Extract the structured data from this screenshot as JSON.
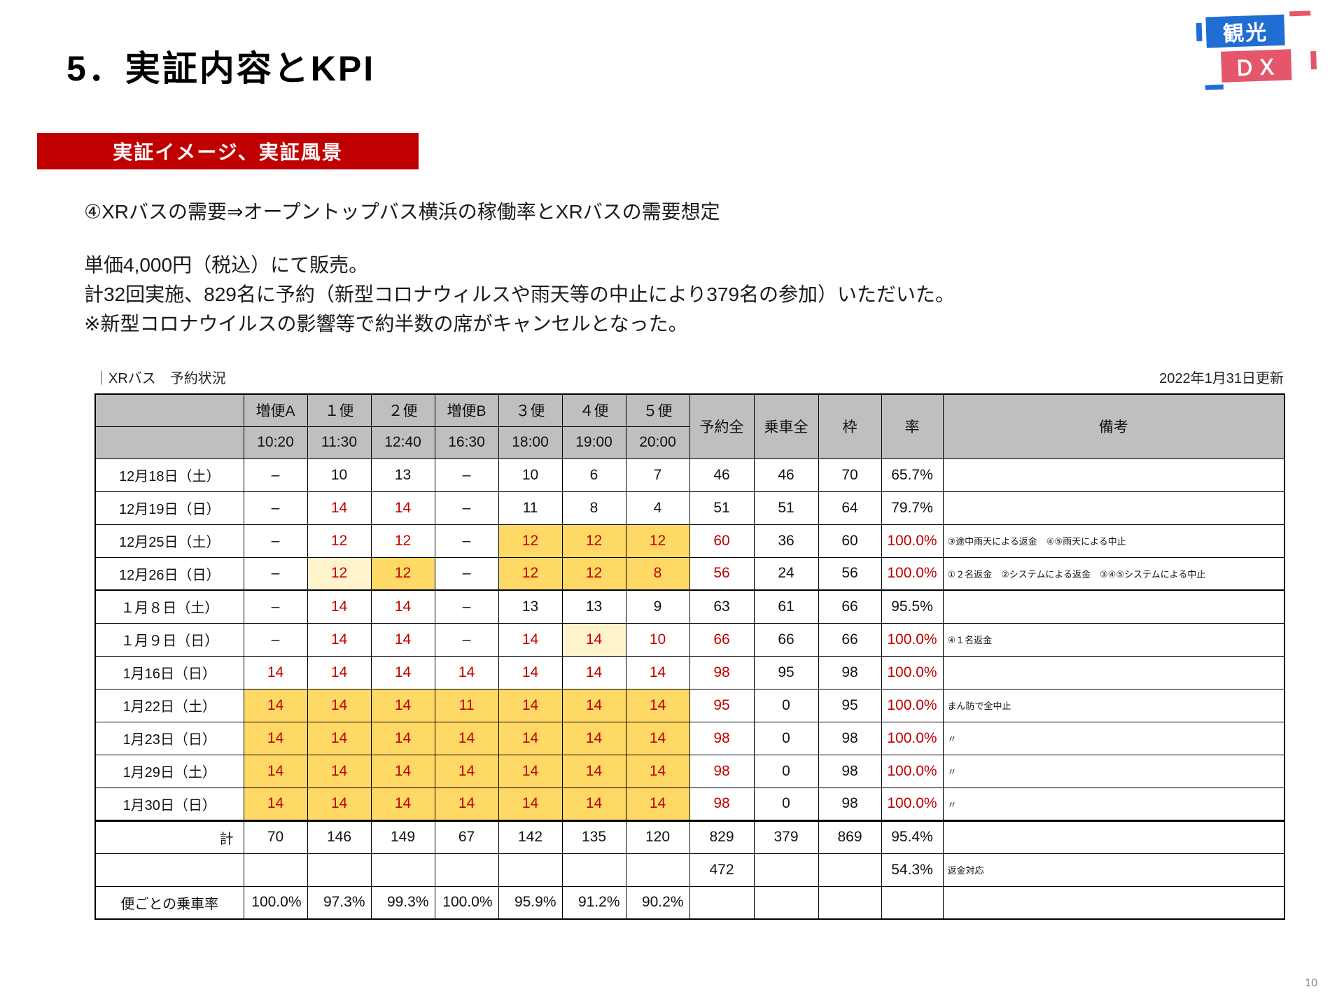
{
  "slide": {
    "title": "5．実証内容とKPI",
    "page_number": "10"
  },
  "logo": {
    "top": "観光",
    "bottom": "ＤＸ"
  },
  "badge": {
    "label": "実証イメージ、実証風景"
  },
  "body": {
    "lines": [
      "④XRバスの需要⇒オープントップバス横浜の稼働率とXRバスの需要想定",
      "単価4,000円（税込）にて販売。",
      "計32回実施、829名に予約（新型コロナウィルスや雨天等の中止により379名の参加）いただいた。",
      "※新型コロナウイルスの影響等で約半数の席がキャンセルとなった。"
    ]
  },
  "colors": {
    "accent_red": "#c00000",
    "highlight_yellow": "#ffd966",
    "highlight_light_yellow": "#fff3cc",
    "header_gray": "#bfbfbf",
    "logo_blue": "#1f6ed4",
    "logo_pink": "#e4566a"
  },
  "table": {
    "caption": "｜XRバス　予約状況",
    "updated": "2022年1月31日更新",
    "bus_headers": [
      {
        "name": "増便A",
        "time": "10:20"
      },
      {
        "name": "１便",
        "time": "11:30"
      },
      {
        "name": "２便",
        "time": "12:40"
      },
      {
        "name": "増便B",
        "time": "16:30"
      },
      {
        "name": "３便",
        "time": "18:00"
      },
      {
        "name": "４便",
        "time": "19:00"
      },
      {
        "name": "５便",
        "time": "20:00"
      }
    ],
    "summary_headers": [
      "予約全",
      "乗車全",
      "枠",
      "率",
      "備考"
    ],
    "rows": [
      {
        "label": "12月18日（土）",
        "cells": [
          {
            "t": "–"
          },
          {
            "t": "10"
          },
          {
            "t": "13"
          },
          {
            "t": "–"
          },
          {
            "t": "10"
          },
          {
            "t": "6"
          },
          {
            "t": "7"
          },
          {
            "t": "46"
          },
          {
            "t": "46"
          },
          {
            "t": "70"
          },
          {
            "t": "65.7%"
          },
          {
            "t": ""
          }
        ]
      },
      {
        "label": "12月19日（日）",
        "cells": [
          {
            "t": "–"
          },
          {
            "t": "14",
            "red": true
          },
          {
            "t": "14",
            "red": true
          },
          {
            "t": "–"
          },
          {
            "t": "11"
          },
          {
            "t": "8"
          },
          {
            "t": "4"
          },
          {
            "t": "51"
          },
          {
            "t": "51"
          },
          {
            "t": "64"
          },
          {
            "t": "79.7%"
          },
          {
            "t": ""
          }
        ]
      },
      {
        "label": "12月25日（土）",
        "cells": [
          {
            "t": "–"
          },
          {
            "t": "12",
            "red": true
          },
          {
            "t": "12",
            "red": true
          },
          {
            "t": "–"
          },
          {
            "t": "12",
            "red": true,
            "bg": "y"
          },
          {
            "t": "12",
            "red": true,
            "bg": "y"
          },
          {
            "t": "12",
            "red": true,
            "bg": "y"
          },
          {
            "t": "60",
            "red": true
          },
          {
            "t": "36"
          },
          {
            "t": "60"
          },
          {
            "t": "100.0%",
            "red": true
          },
          {
            "t": "③途中雨天による返金　④⑤雨天による中止"
          }
        ]
      },
      {
        "label": "12月26日（日）",
        "cells": [
          {
            "t": "–"
          },
          {
            "t": "12",
            "red": true,
            "bg": "ly"
          },
          {
            "t": "12",
            "red": true,
            "bg": "y"
          },
          {
            "t": "–"
          },
          {
            "t": "12",
            "red": true,
            "bg": "y"
          },
          {
            "t": "12",
            "red": true,
            "bg": "y"
          },
          {
            "t": "8",
            "red": true,
            "bg": "y"
          },
          {
            "t": "56",
            "red": true
          },
          {
            "t": "24"
          },
          {
            "t": "56"
          },
          {
            "t": "100.0%",
            "red": true
          },
          {
            "t": "①２名返金　②システムによる返金　③④⑤システムによる中止"
          }
        ]
      },
      {
        "label": "１月８日（土）",
        "sep": true,
        "cells": [
          {
            "t": "–"
          },
          {
            "t": "14",
            "red": true
          },
          {
            "t": "14",
            "red": true
          },
          {
            "t": "–"
          },
          {
            "t": "13"
          },
          {
            "t": "13"
          },
          {
            "t": "9"
          },
          {
            "t": "63"
          },
          {
            "t": "61"
          },
          {
            "t": "66"
          },
          {
            "t": "95.5%"
          },
          {
            "t": ""
          }
        ]
      },
      {
        "label": "１月９日（日）",
        "cells": [
          {
            "t": "–"
          },
          {
            "t": "14",
            "red": true
          },
          {
            "t": "14",
            "red": true
          },
          {
            "t": "–"
          },
          {
            "t": "14",
            "red": true
          },
          {
            "t": "14",
            "red": true,
            "bg": "ly"
          },
          {
            "t": "10",
            "red": true
          },
          {
            "t": "66",
            "red": true
          },
          {
            "t": "66"
          },
          {
            "t": "66"
          },
          {
            "t": "100.0%",
            "red": true
          },
          {
            "t": "④１名返金"
          }
        ]
      },
      {
        "label": "1月16日（日）",
        "cells": [
          {
            "t": "14",
            "red": true
          },
          {
            "t": "14",
            "red": true
          },
          {
            "t": "14",
            "red": true
          },
          {
            "t": "14",
            "red": true
          },
          {
            "t": "14",
            "red": true
          },
          {
            "t": "14",
            "red": true
          },
          {
            "t": "14",
            "red": true
          },
          {
            "t": "98",
            "red": true
          },
          {
            "t": "95"
          },
          {
            "t": "98"
          },
          {
            "t": "100.0%",
            "red": true
          },
          {
            "t": ""
          }
        ]
      },
      {
        "label": "1月22日（土）",
        "cells": [
          {
            "t": "14",
            "red": true,
            "bg": "y"
          },
          {
            "t": "14",
            "red": true,
            "bg": "y"
          },
          {
            "t": "14",
            "red": true,
            "bg": "y"
          },
          {
            "t": "11",
            "red": true,
            "bg": "y"
          },
          {
            "t": "14",
            "red": true,
            "bg": "y"
          },
          {
            "t": "14",
            "red": true,
            "bg": "y"
          },
          {
            "t": "14",
            "red": true,
            "bg": "y"
          },
          {
            "t": "95",
            "red": true
          },
          {
            "t": "0"
          },
          {
            "t": "95"
          },
          {
            "t": "100.0%",
            "red": true
          },
          {
            "t": "まん防で全中止"
          }
        ]
      },
      {
        "label": "1月23日（日）",
        "cells": [
          {
            "t": "14",
            "red": true,
            "bg": "y"
          },
          {
            "t": "14",
            "red": true,
            "bg": "y"
          },
          {
            "t": "14",
            "red": true,
            "bg": "y"
          },
          {
            "t": "14",
            "red": true,
            "bg": "y"
          },
          {
            "t": "14",
            "red": true,
            "bg": "y"
          },
          {
            "t": "14",
            "red": true,
            "bg": "y"
          },
          {
            "t": "14",
            "red": true,
            "bg": "y"
          },
          {
            "t": "98",
            "red": true
          },
          {
            "t": "0"
          },
          {
            "t": "98"
          },
          {
            "t": "100.0%",
            "red": true
          },
          {
            "t": "〃"
          }
        ]
      },
      {
        "label": "1月29日（土）",
        "cells": [
          {
            "t": "14",
            "red": true,
            "bg": "y"
          },
          {
            "t": "14",
            "red": true,
            "bg": "y"
          },
          {
            "t": "14",
            "red": true,
            "bg": "y"
          },
          {
            "t": "14",
            "red": true,
            "bg": "y"
          },
          {
            "t": "14",
            "red": true,
            "bg": "y"
          },
          {
            "t": "14",
            "red": true,
            "bg": "y"
          },
          {
            "t": "14",
            "red": true,
            "bg": "y"
          },
          {
            "t": "98",
            "red": true
          },
          {
            "t": "0"
          },
          {
            "t": "98"
          },
          {
            "t": "100.0%",
            "red": true
          },
          {
            "t": "〃"
          }
        ]
      },
      {
        "label": "1月30日（日）",
        "cells": [
          {
            "t": "14",
            "red": true,
            "bg": "y"
          },
          {
            "t": "14",
            "red": true,
            "bg": "y"
          },
          {
            "t": "14",
            "red": true,
            "bg": "y"
          },
          {
            "t": "14",
            "red": true,
            "bg": "y"
          },
          {
            "t": "14",
            "red": true,
            "bg": "y"
          },
          {
            "t": "14",
            "red": true,
            "bg": "y"
          },
          {
            "t": "14",
            "red": true,
            "bg": "y"
          },
          {
            "t": "98",
            "red": true
          },
          {
            "t": "0"
          },
          {
            "t": "98"
          },
          {
            "t": "100.0%",
            "red": true
          },
          {
            "t": "〃"
          }
        ]
      }
    ],
    "total_row": {
      "label": "計",
      "cells": [
        "70",
        "146",
        "149",
        "67",
        "142",
        "135",
        "120",
        "829",
        "379",
        "869",
        "95.4%",
        ""
      ]
    },
    "refund_row": {
      "label": "",
      "cells": [
        "",
        "",
        "",
        "",
        "",
        "",
        "",
        "472",
        "",
        "",
        "54.3%",
        "返金対応"
      ]
    },
    "rate_row": {
      "label": "便ごとの乗車率",
      "cells": [
        "100.0%",
        "97.3%",
        "99.3%",
        "100.0%",
        "95.9%",
        "91.2%",
        "90.2%",
        "",
        "",
        "",
        "",
        ""
      ]
    }
  }
}
